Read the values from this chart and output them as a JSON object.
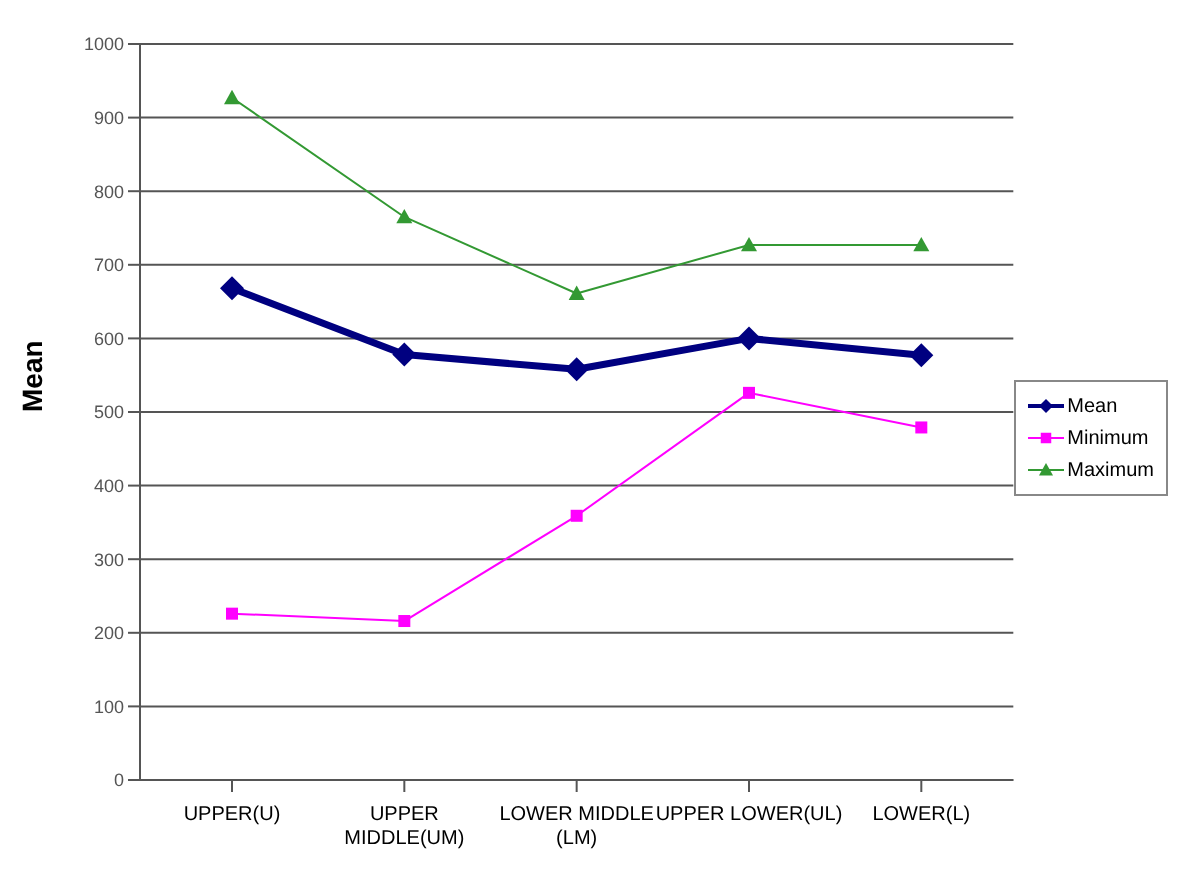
{
  "chart_data": {
    "type": "line",
    "ylabel": "Mean",
    "categories": [
      "UPPER(U)",
      "UPPER MIDDLE(UM)",
      "LOWER MIDDLE (LM)",
      "UPPER LOWER(UL)",
      "LOWER(L)"
    ],
    "series": [
      {
        "name": "Mean",
        "color": "#000080",
        "marker": "diamond",
        "values": [
          668,
          578,
          558,
          600,
          577
        ]
      },
      {
        "name": "Minimum",
        "color": "#ff00ff",
        "marker": "square",
        "values": [
          226,
          216,
          359,
          526,
          479
        ]
      },
      {
        "name": "Maximum",
        "color": "#339933",
        "marker": "triangle",
        "values": [
          927,
          765,
          661,
          727,
          727
        ]
      }
    ],
    "ylim": [
      0,
      1000
    ],
    "yticks": [
      0,
      100,
      200,
      300,
      400,
      500,
      600,
      700,
      800,
      900,
      1000
    ],
    "grid": "y",
    "legend": "right"
  }
}
